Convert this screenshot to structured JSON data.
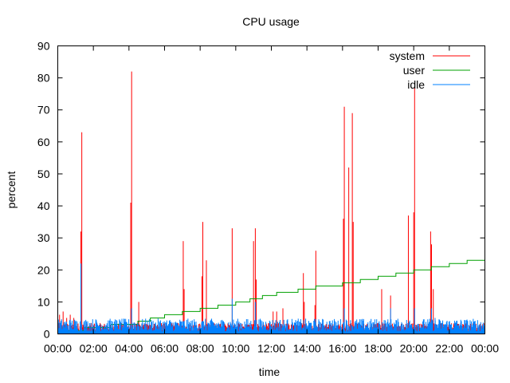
{
  "chart_data": {
    "type": "line",
    "title": "CPU usage",
    "xlabel": "time",
    "ylabel": "percent",
    "ylim": [
      0,
      90
    ],
    "yticks": [
      0,
      10,
      20,
      30,
      40,
      50,
      60,
      70,
      80,
      90
    ],
    "xlim_hours": [
      0,
      24
    ],
    "xticks": [
      "00:00",
      "02:00",
      "04:00",
      "06:00",
      "08:00",
      "10:00",
      "12:00",
      "14:00",
      "16:00",
      "18:00",
      "20:00",
      "22:00",
      "00:00"
    ],
    "legend_position": "top-right",
    "series": [
      {
        "name": "system",
        "color": "#ff0000",
        "baseline": 2,
        "spikes": [
          {
            "x": 0.1,
            "y": 6
          },
          {
            "x": 0.3,
            "y": 7
          },
          {
            "x": 0.5,
            "y": 5
          },
          {
            "x": 0.7,
            "y": 6
          },
          {
            "x": 0.9,
            "y": 5
          },
          {
            "x": 1.3,
            "y": 32
          },
          {
            "x": 1.35,
            "y": 63
          },
          {
            "x": 4.1,
            "y": 41
          },
          {
            "x": 4.15,
            "y": 82
          },
          {
            "x": 4.55,
            "y": 10
          },
          {
            "x": 7.05,
            "y": 29
          },
          {
            "x": 7.1,
            "y": 14
          },
          {
            "x": 8.1,
            "y": 18
          },
          {
            "x": 8.15,
            "y": 35
          },
          {
            "x": 8.35,
            "y": 23
          },
          {
            "x": 9.8,
            "y": 33
          },
          {
            "x": 11.0,
            "y": 29
          },
          {
            "x": 11.1,
            "y": 33
          },
          {
            "x": 11.15,
            "y": 17
          },
          {
            "x": 12.1,
            "y": 7
          },
          {
            "x": 12.3,
            "y": 7
          },
          {
            "x": 12.65,
            "y": 8
          },
          {
            "x": 13.8,
            "y": 19
          },
          {
            "x": 13.85,
            "y": 10
          },
          {
            "x": 14.5,
            "y": 26
          },
          {
            "x": 14.45,
            "y": 9
          },
          {
            "x": 16.05,
            "y": 36
          },
          {
            "x": 16.1,
            "y": 71
          },
          {
            "x": 16.35,
            "y": 52
          },
          {
            "x": 16.55,
            "y": 69
          },
          {
            "x": 16.6,
            "y": 35
          },
          {
            "x": 18.2,
            "y": 14
          },
          {
            "x": 18.7,
            "y": 12
          },
          {
            "x": 19.7,
            "y": 37
          },
          {
            "x": 20.0,
            "y": 38
          },
          {
            "x": 20.05,
            "y": 77
          },
          {
            "x": 20.95,
            "y": 32
          },
          {
            "x": 21.0,
            "y": 28
          },
          {
            "x": 21.1,
            "y": 14
          }
        ]
      },
      {
        "name": "user",
        "color": "#00a000",
        "steps": [
          {
            "x": 0,
            "y": 1
          },
          {
            "x": 1.5,
            "y": 2
          },
          {
            "x": 3,
            "y": 3
          },
          {
            "x": 4.5,
            "y": 4
          },
          {
            "x": 5.2,
            "y": 5
          },
          {
            "x": 6,
            "y": 6
          },
          {
            "x": 7,
            "y": 7
          },
          {
            "x": 8,
            "y": 8
          },
          {
            "x": 9,
            "y": 9
          },
          {
            "x": 10,
            "y": 10
          },
          {
            "x": 10.8,
            "y": 11
          },
          {
            "x": 11.5,
            "y": 12
          },
          {
            "x": 12.3,
            "y": 13
          },
          {
            "x": 13.5,
            "y": 14
          },
          {
            "x": 14.5,
            "y": 15
          },
          {
            "x": 16,
            "y": 16
          },
          {
            "x": 17,
            "y": 17
          },
          {
            "x": 18,
            "y": 18
          },
          {
            "x": 19,
            "y": 19
          },
          {
            "x": 20,
            "y": 20
          },
          {
            "x": 21,
            "y": 21
          },
          {
            "x": 22,
            "y": 22
          },
          {
            "x": 23,
            "y": 23
          },
          {
            "x": 24,
            "y": 23
          }
        ]
      },
      {
        "name": "idle",
        "color": "#0080ff",
        "baseline": 4,
        "spikes": [
          {
            "x": 1.3,
            "y": 22
          },
          {
            "x": 4.15,
            "y": 8
          },
          {
            "x": 9.8,
            "y": 11
          },
          {
            "x": 11.1,
            "y": 10
          },
          {
            "x": 16.1,
            "y": 8
          },
          {
            "x": 18.7,
            "y": 8
          },
          {
            "x": 20.05,
            "y": 8
          },
          {
            "x": 21.0,
            "y": 8
          },
          {
            "x": 21.2,
            "y": 5
          }
        ]
      }
    ]
  }
}
